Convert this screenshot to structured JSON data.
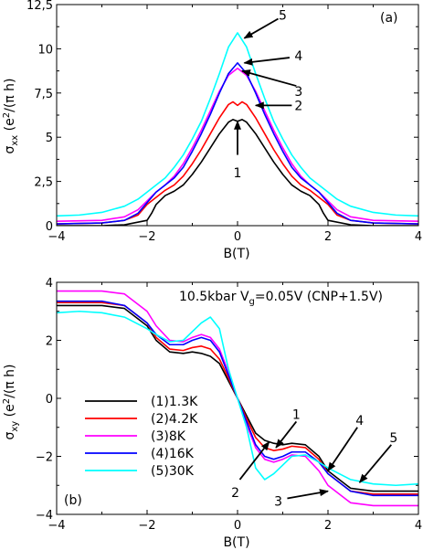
{
  "chart_data": [
    {
      "type": "line",
      "panel_label": "(a)",
      "xlabel": "B(T)",
      "ylabel_main": "σ",
      "ylabel_sub": "xx",
      "ylabel_unit": " (e",
      "ylabel_sup": "2",
      "ylabel_tail": "/(π h)",
      "xlim": [
        -4,
        4
      ],
      "ylim": [
        0,
        12.5
      ],
      "xticks": [
        -4,
        -2,
        0,
        2,
        4
      ],
      "xtick_labels": [
        "−4",
        "−2",
        "0",
        "2",
        "4"
      ],
      "yticks": [
        0,
        2.5,
        5,
        7.5,
        10,
        12.5
      ],
      "ytick_labels": [
        "0",
        "2,5",
        "5",
        "7,5",
        "10",
        "12,5"
      ],
      "series": [
        {
          "color": "#000000",
          "x": [
            -4,
            -3,
            -2.5,
            -2,
            -1.9,
            -1.8,
            -1.6,
            -1.4,
            -1.2,
            -1,
            -0.8,
            -0.6,
            -0.4,
            -0.2,
            -0.1,
            0,
            0.1,
            0.2,
            0.4,
            0.6,
            0.8,
            1,
            1.2,
            1.4,
            1.6,
            1.8,
            1.9,
            2,
            2.5,
            3,
            4
          ],
          "y": [
            0,
            0,
            0.05,
            0.3,
            0.7,
            1.2,
            1.7,
            1.95,
            2.3,
            2.9,
            3.6,
            4.4,
            5.2,
            5.85,
            6.0,
            5.9,
            6.0,
            5.85,
            5.2,
            4.4,
            3.6,
            2.9,
            2.3,
            1.95,
            1.7,
            1.2,
            0.7,
            0.3,
            0.05,
            0,
            0
          ]
        },
        {
          "color": "#ff0000",
          "x": [
            -4,
            -3,
            -2.5,
            -2.2,
            -2,
            -1.8,
            -1.6,
            -1.4,
            -1.2,
            -1,
            -0.8,
            -0.6,
            -0.4,
            -0.2,
            -0.1,
            0,
            0.1,
            0.2,
            0.4,
            0.6,
            0.8,
            1,
            1.2,
            1.4,
            1.6,
            1.8,
            2,
            2.2,
            2.5,
            3,
            4
          ],
          "y": [
            0.1,
            0.15,
            0.3,
            0.6,
            1.2,
            1.6,
            2.0,
            2.3,
            2.8,
            3.5,
            4.3,
            5.2,
            6.1,
            6.85,
            7.0,
            6.8,
            7.0,
            6.85,
            6.1,
            5.2,
            4.3,
            3.5,
            2.8,
            2.3,
            2.0,
            1.6,
            1.2,
            0.6,
            0.3,
            0.15,
            0.1
          ]
        },
        {
          "color": "#ff00ff",
          "x": [
            -4,
            -3,
            -2.5,
            -2.2,
            -2,
            -1.8,
            -1.6,
            -1.4,
            -1.2,
            -1,
            -0.8,
            -0.6,
            -0.4,
            -0.2,
            0,
            0.2,
            0.4,
            0.6,
            0.8,
            1,
            1.2,
            1.4,
            1.6,
            1.8,
            2,
            2.2,
            2.5,
            3,
            4
          ],
          "y": [
            0.25,
            0.3,
            0.5,
            0.9,
            1.4,
            1.9,
            2.3,
            2.8,
            3.5,
            4.4,
            5.4,
            6.5,
            7.6,
            8.5,
            8.9,
            8.5,
            7.6,
            6.5,
            5.4,
            4.4,
            3.5,
            2.8,
            2.3,
            1.9,
            1.4,
            0.9,
            0.5,
            0.3,
            0.25
          ]
        },
        {
          "color": "#0000ff",
          "x": [
            -4,
            -3,
            -2.5,
            -2.2,
            -2,
            -1.8,
            -1.6,
            -1.4,
            -1.2,
            -1,
            -0.8,
            -0.6,
            -0.4,
            -0.2,
            0,
            0.2,
            0.4,
            0.6,
            0.8,
            1,
            1.2,
            1.4,
            1.6,
            1.8,
            2,
            2.2,
            2.5,
            3,
            4
          ],
          "y": [
            0.1,
            0.15,
            0.3,
            0.7,
            1.3,
            1.9,
            2.3,
            2.7,
            3.3,
            4.2,
            5.2,
            6.3,
            7.5,
            8.6,
            9.2,
            8.6,
            7.5,
            6.3,
            5.2,
            4.2,
            3.3,
            2.7,
            2.3,
            1.9,
            1.3,
            0.7,
            0.3,
            0.15,
            0.1
          ]
        },
        {
          "color": "#00ffff",
          "x": [
            -4,
            -3.5,
            -3,
            -2.5,
            -2.2,
            -2,
            -1.8,
            -1.6,
            -1.4,
            -1.2,
            -1,
            -0.8,
            -0.6,
            -0.4,
            -0.2,
            0,
            0.2,
            0.4,
            0.6,
            0.8,
            1,
            1.2,
            1.4,
            1.6,
            1.8,
            2,
            2.2,
            2.5,
            3,
            3.5,
            4
          ],
          "y": [
            0.55,
            0.6,
            0.75,
            1.1,
            1.5,
            1.9,
            2.3,
            2.7,
            3.3,
            4.0,
            4.9,
            5.9,
            7.2,
            8.6,
            10.1,
            10.9,
            10.1,
            8.6,
            7.2,
            5.9,
            4.9,
            4.0,
            3.3,
            2.7,
            2.3,
            1.9,
            1.5,
            1.1,
            0.75,
            0.6,
            0.55
          ]
        }
      ],
      "annotations": [
        {
          "text": "1",
          "tip": [
            0,
            5.9
          ],
          "tail": [
            0,
            4.0
          ],
          "label_at": [
            0,
            3.0
          ]
        },
        {
          "text": "2",
          "tip": [
            0.4,
            6.8
          ],
          "tail": [
            1.2,
            6.8
          ],
          "label_at": [
            1.35,
            6.8
          ]
        },
        {
          "text": "3",
          "tip": [
            0.1,
            8.75
          ],
          "tail": [
            1.3,
            7.9
          ],
          "label_at": [
            1.35,
            7.6
          ]
        },
        {
          "text": "4",
          "tip": [
            0.15,
            9.2
          ],
          "tail": [
            1.15,
            9.5
          ],
          "label_at": [
            1.35,
            9.6
          ]
        },
        {
          "text": "5",
          "tip": [
            0.15,
            10.6
          ],
          "tail": [
            0.9,
            11.7
          ],
          "label_at": [
            1.0,
            11.9
          ]
        }
      ]
    },
    {
      "type": "line",
      "panel_label": "(b)",
      "condition_text": "10.5kbar V",
      "condition_sub": "g",
      "condition_tail": "=0.05V (CNP+1.5V)",
      "xlabel": "B(T)",
      "ylabel_main": "σ",
      "ylabel_sub": "xy",
      "ylabel_unit": " (e",
      "ylabel_sup": "2",
      "ylabel_tail": "/(π h)",
      "xlim": [
        -4,
        4
      ],
      "ylim": [
        -4,
        4
      ],
      "xticks": [
        -4,
        -2,
        0,
        2,
        4
      ],
      "xtick_labels": [
        "−4",
        "−2",
        "0",
        "2",
        "4"
      ],
      "yticks": [
        -4,
        -2,
        0,
        2,
        4
      ],
      "ytick_labels": [
        "−4",
        "−2",
        "0",
        "2",
        "4"
      ],
      "series": [
        {
          "name": "(1)1.3K",
          "color": "#000000",
          "x": [
            -4,
            -3,
            -2.5,
            -2,
            -1.8,
            -1.5,
            -1.2,
            -1,
            -0.8,
            -0.6,
            -0.4,
            -0.2,
            0,
            0.2,
            0.4,
            0.6,
            0.8,
            1,
            1.2,
            1.5,
            1.8,
            2,
            2.5,
            3,
            4
          ],
          "y": [
            3.2,
            3.2,
            3.1,
            2.5,
            2.0,
            1.6,
            1.55,
            1.6,
            1.55,
            1.45,
            1.2,
            0.6,
            0,
            -0.6,
            -1.2,
            -1.45,
            -1.55,
            -1.6,
            -1.55,
            -1.6,
            -2.0,
            -2.5,
            -3.1,
            -3.2,
            -3.2
          ]
        },
        {
          "name": "(2)4.2K",
          "color": "#ff0000",
          "x": [
            -4,
            -3,
            -2.5,
            -2,
            -1.8,
            -1.5,
            -1.2,
            -1,
            -0.8,
            -0.6,
            -0.4,
            -0.2,
            0,
            0.2,
            0.4,
            0.6,
            0.8,
            1,
            1.2,
            1.5,
            1.8,
            2,
            2.5,
            3,
            4
          ],
          "y": [
            3.3,
            3.3,
            3.2,
            2.6,
            2.1,
            1.7,
            1.65,
            1.75,
            1.8,
            1.7,
            1.35,
            0.7,
            0,
            -0.7,
            -1.35,
            -1.7,
            -1.8,
            -1.75,
            -1.65,
            -1.7,
            -2.1,
            -2.6,
            -3.2,
            -3.3,
            -3.3
          ]
        },
        {
          "name": "(3)8K",
          "color": "#ff00ff",
          "x": [
            -4,
            -3,
            -2.5,
            -2,
            -1.8,
            -1.5,
            -1.2,
            -1,
            -0.8,
            -0.6,
            -0.4,
            -0.2,
            0,
            0.2,
            0.4,
            0.6,
            0.8,
            1,
            1.2,
            1.5,
            1.8,
            2,
            2.5,
            3,
            4
          ],
          "y": [
            3.7,
            3.7,
            3.6,
            3.0,
            2.5,
            2.0,
            1.95,
            2.1,
            2.2,
            2.1,
            1.7,
            0.9,
            0,
            -0.9,
            -1.7,
            -2.1,
            -2.2,
            -2.1,
            -1.95,
            -2.0,
            -2.5,
            -3.0,
            -3.6,
            -3.7,
            -3.7
          ]
        },
        {
          "name": "(4)16K",
          "color": "#0000ff",
          "x": [
            -4,
            -3,
            -2.5,
            -2,
            -1.8,
            -1.5,
            -1.2,
            -1,
            -0.8,
            -0.6,
            -0.4,
            -0.2,
            0,
            0.2,
            0.4,
            0.6,
            0.8,
            1,
            1.2,
            1.5,
            1.8,
            2,
            2.5,
            3,
            4
          ],
          "y": [
            3.35,
            3.35,
            3.2,
            2.6,
            2.2,
            1.85,
            1.85,
            2.0,
            2.1,
            2.0,
            1.6,
            0.8,
            0,
            -0.8,
            -1.6,
            -2.0,
            -2.1,
            -2.0,
            -1.85,
            -1.85,
            -2.2,
            -2.6,
            -3.2,
            -3.35,
            -3.35
          ]
        },
        {
          "name": "(5)30K",
          "color": "#00ffff",
          "x": [
            -4,
            -3.5,
            -3,
            -2.5,
            -2,
            -1.8,
            -1.5,
            -1.2,
            -1,
            -0.8,
            -0.6,
            -0.4,
            -0.2,
            0,
            0.2,
            0.4,
            0.6,
            0.8,
            1,
            1.2,
            1.5,
            1.8,
            2,
            2.5,
            3,
            3.5,
            4
          ],
          "y": [
            2.95,
            3.0,
            2.95,
            2.8,
            2.4,
            2.2,
            1.95,
            2.0,
            2.3,
            2.6,
            2.8,
            2.4,
            1.0,
            0,
            -1.0,
            -2.4,
            -2.8,
            -2.6,
            -2.3,
            -2.0,
            -1.95,
            -2.2,
            -2.4,
            -2.8,
            -2.95,
            -3.0,
            -2.95
          ]
        }
      ],
      "annotations": [
        {
          "text": "1",
          "tip": [
            0.85,
            -1.7
          ],
          "tail": [
            1.3,
            -0.8
          ],
          "label_at": [
            1.3,
            -0.55
          ]
        },
        {
          "text": "2",
          "tip": [
            0.7,
            -1.5
          ],
          "tail": [
            0.05,
            -2.8
          ],
          "label_at": [
            -0.05,
            -3.25
          ]
        },
        {
          "text": "3",
          "tip": [
            2.0,
            -3.2
          ],
          "tail": [
            1.1,
            -3.45
          ],
          "label_at": [
            0.9,
            -3.55
          ]
        },
        {
          "text": "4",
          "tip": [
            2.0,
            -2.5
          ],
          "tail": [
            2.65,
            -1.0
          ],
          "label_at": [
            2.7,
            -0.75
          ]
        },
        {
          "text": "5",
          "tip": [
            2.7,
            -2.9
          ],
          "tail": [
            3.4,
            -1.6
          ],
          "label_at": [
            3.45,
            -1.35
          ]
        }
      ]
    }
  ]
}
